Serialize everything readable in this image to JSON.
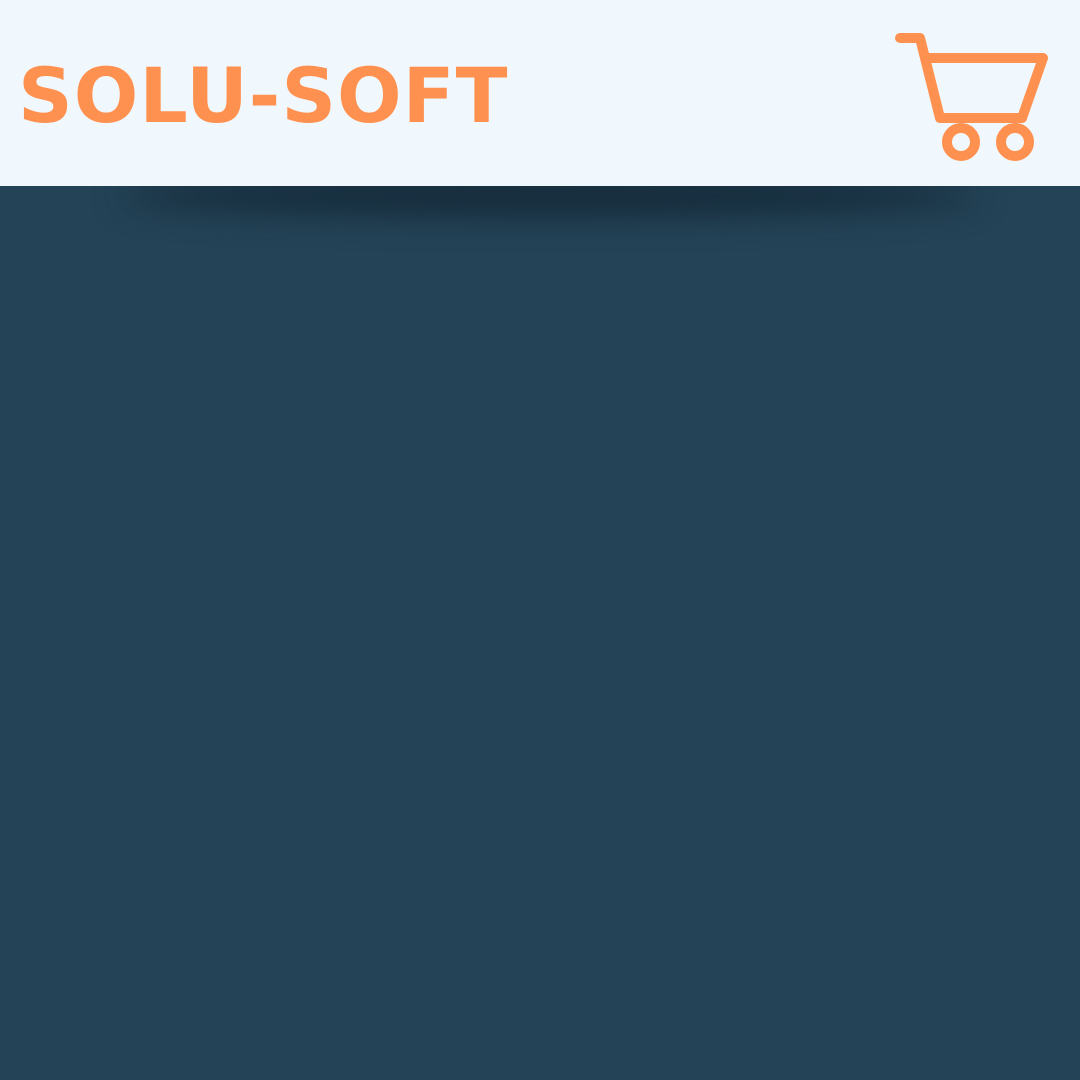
{
  "header": {
    "brand": "SOLU-SOFT",
    "cart_icon": "shopping-cart-icon"
  },
  "colors": {
    "header_background": "#f1f8fd",
    "accent": "#ff9150",
    "main_background": "#244357"
  }
}
